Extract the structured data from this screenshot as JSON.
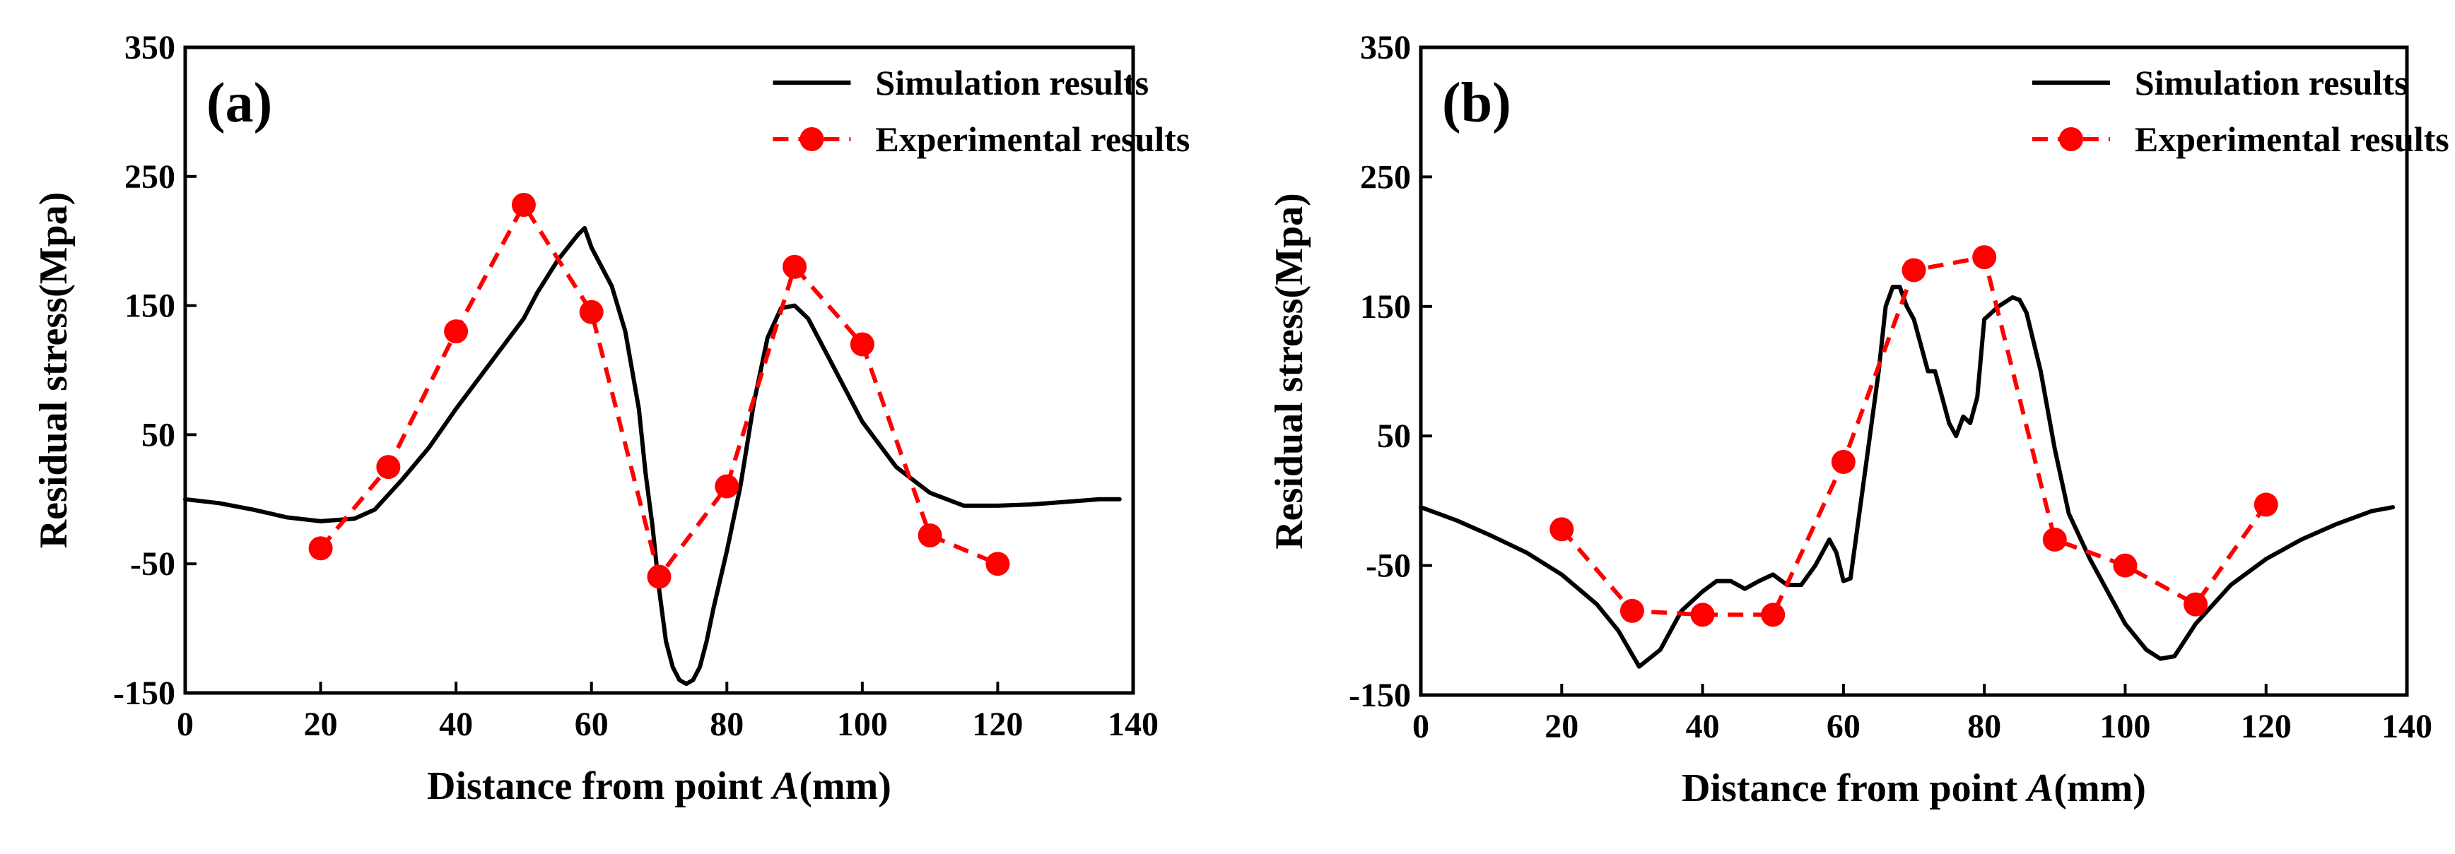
{
  "chart_data": [
    {
      "type": "line",
      "panel_label": "(a)",
      "xlabel_prefix": "Distance from point ",
      "xlabel_italic": "A",
      "xlabel_suffix": "(mm)",
      "ylabel": "Residual stress(Mpa)",
      "xlim": [
        0,
        140
      ],
      "ylim": [
        -150,
        350
      ],
      "xticks": [
        0,
        20,
        40,
        60,
        80,
        100,
        120,
        140
      ],
      "yticks": [
        -150,
        -50,
        50,
        150,
        250,
        350
      ],
      "legend_position": "top-right",
      "series": [
        {
          "name": "Simulation results",
          "style": "solid",
          "color": "#000000",
          "x": [
            0,
            5,
            10,
            15,
            20,
            25,
            28,
            32,
            36,
            40,
            45,
            50,
            52,
            55,
            58,
            59,
            60,
            63,
            65,
            67,
            68,
            69,
            70,
            71,
            72,
            73,
            74,
            75,
            76,
            77,
            78,
            80,
            82,
            84,
            86,
            88,
            90,
            92,
            95,
            100,
            105,
            110,
            115,
            120,
            125,
            130,
            135,
            138
          ],
          "y": [
            0,
            -3,
            -8,
            -14,
            -17,
            -15,
            -8,
            15,
            40,
            70,
            105,
            140,
            160,
            185,
            205,
            210,
            195,
            165,
            130,
            70,
            20,
            -20,
            -70,
            -110,
            -130,
            -140,
            -143,
            -140,
            -130,
            -110,
            -85,
            -40,
            10,
            75,
            125,
            148,
            150,
            140,
            110,
            60,
            25,
            5,
            -5,
            -5,
            -4,
            -2,
            0,
            0
          ]
        },
        {
          "name": "Experimental results",
          "style": "dashed-marker",
          "color": "#ff0000",
          "x": [
            20,
            30,
            40,
            50,
            60,
            70,
            80,
            90,
            100,
            110,
            120
          ],
          "y": [
            -38,
            25,
            130,
            228,
            145,
            -60,
            10,
            180,
            120,
            -28,
            -50
          ]
        }
      ]
    },
    {
      "type": "line",
      "panel_label": "(b)",
      "xlabel_prefix": "Distance from point ",
      "xlabel_italic": "A",
      "xlabel_suffix": "(mm)",
      "ylabel": "Residual stress(Mpa)",
      "xlim": [
        0,
        140
      ],
      "ylim": [
        -150,
        350
      ],
      "xticks": [
        0,
        20,
        40,
        60,
        80,
        100,
        120,
        140
      ],
      "yticks": [
        -150,
        -50,
        50,
        150,
        250,
        350
      ],
      "legend_position": "top-right",
      "series": [
        {
          "name": "Simulation results",
          "style": "solid",
          "color": "#000000",
          "x": [
            0,
            5,
            10,
            15,
            20,
            25,
            28,
            31,
            34,
            37,
            40,
            42,
            44,
            46,
            48,
            50,
            52,
            54,
            56,
            57,
            58,
            59,
            60,
            61,
            63,
            65,
            66,
            67,
            68,
            69,
            70,
            71,
            72,
            73,
            74,
            75,
            76,
            77,
            78,
            79,
            80,
            82,
            84,
            85,
            86,
            88,
            90,
            92,
            95,
            100,
            103,
            105,
            107,
            110,
            115,
            120,
            125,
            130,
            135,
            138
          ],
          "y": [
            -5,
            -15,
            -27,
            -40,
            -57,
            -80,
            -100,
            -128,
            -115,
            -85,
            -70,
            -62,
            -62,
            -68,
            -62,
            -57,
            -65,
            -65,
            -50,
            -40,
            -30,
            -40,
            -62,
            -60,
            20,
            100,
            150,
            165,
            165,
            150,
            140,
            120,
            100,
            100,
            80,
            60,
            50,
            65,
            60,
            80,
            140,
            150,
            157,
            155,
            145,
            100,
            40,
            -10,
            -45,
            -95,
            -115,
            -122,
            -120,
            -95,
            -65,
            -45,
            -30,
            -18,
            -8,
            -5
          ]
        },
        {
          "name": "Experimental results",
          "style": "dashed-marker",
          "color": "#ff0000",
          "x": [
            20,
            30,
            40,
            50,
            60,
            70,
            80,
            90,
            100,
            110,
            120
          ],
          "y": [
            -22,
            -85,
            -88,
            -88,
            30,
            178,
            188,
            -30,
            -50,
            -80,
            -3
          ]
        }
      ]
    }
  ]
}
